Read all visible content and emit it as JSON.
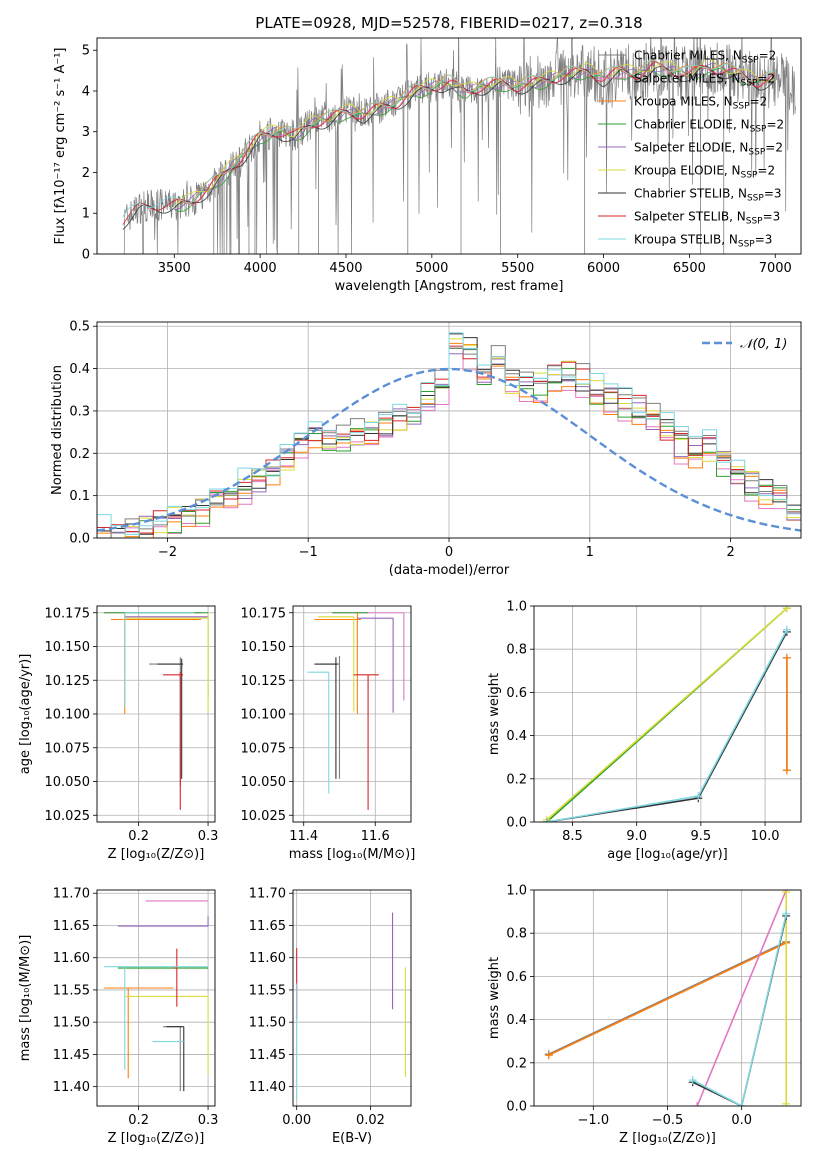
{
  "figure_title": "PLATE=0928, MJD=52578, FIBERID=0217, z=0.318",
  "models": [
    {
      "name": "Chabrier MILES, N",
      "nssp": "=2",
      "color": "#7f7f7f"
    },
    {
      "name": "Salpeter MILES, N",
      "nssp": "=2",
      "color": "#e377c2"
    },
    {
      "name": "Kroupa MILES, N",
      "nssp": "=2",
      "color": "#ff7f0e"
    },
    {
      "name": "Chabrier ELODIE, N",
      "nssp": "=2",
      "color": "#2ca02c"
    },
    {
      "name": "Salpeter ELODIE, N",
      "nssp": "=2",
      "color": "#9467bd"
    },
    {
      "name": "Kroupa ELODIE, N",
      "nssp": "=2",
      "color": "#dbdb3a"
    },
    {
      "name": "Chabrier STELIB, N",
      "nssp": "=3",
      "color": "#333333"
    },
    {
      "name": "Salpeter STELIB, N",
      "nssp": "=3",
      "color": "#d62728"
    },
    {
      "name": "Kroupa STELIB, N",
      "nssp": "=3",
      "color": "#7fd8e0"
    }
  ],
  "chart_data": [
    {
      "id": "spectrum",
      "type": "line",
      "title": "PLATE=0928, MJD=52578, FIBERID=0217, z=0.318",
      "xlabel": "wavelength [Angstrom, rest frame]",
      "ylabel": "Flux [fλ10⁻¹⁷ erg cm⁻² s⁻¹ A⁻¹]",
      "xlim": [
        3050,
        7150
      ],
      "ylim": [
        0,
        5.3
      ],
      "xticks": [
        3500,
        4000,
        4500,
        5000,
        5500,
        6000,
        6500,
        7000
      ],
      "yticks": [
        0,
        1,
        2,
        3,
        4,
        5
      ],
      "grid": false,
      "legend_position": "top-right",
      "data_range": [
        3200,
        7120
      ],
      "envelope": {
        "x": [
          3200,
          3300,
          3400,
          3500,
          3600,
          3700,
          3800,
          3900,
          4000,
          4100,
          4200,
          4300,
          4400,
          4500,
          4600,
          4700,
          4800,
          4900,
          5000,
          5100,
          5200,
          5300,
          5400,
          5500,
          5600,
          5700,
          5800,
          5900,
          6000,
          6100,
          6200,
          6300,
          6400,
          6500,
          6600,
          6700,
          6800,
          6900,
          7000,
          7100
        ],
        "y": [
          0.8,
          1.15,
          1.2,
          1.2,
          1.3,
          1.6,
          2.0,
          2.4,
          2.9,
          3.0,
          2.9,
          3.2,
          3.3,
          3.5,
          3.4,
          3.6,
          3.7,
          4.0,
          4.1,
          4.2,
          4.0,
          4.1,
          4.2,
          4.1,
          4.2,
          4.3,
          4.4,
          4.5,
          4.3,
          4.5,
          4.4,
          4.6,
          4.5,
          4.4,
          4.6,
          4.5,
          4.4,
          4.2,
          4.3,
          4.1
        ]
      }
    },
    {
      "id": "residuals",
      "type": "bar",
      "xlabel": "(data-model)/error",
      "ylabel": "Normed distribution",
      "xlim": [
        -2.5,
        2.5
      ],
      "ylim": [
        0,
        0.51
      ],
      "xticks": [
        -2,
        -1,
        0,
        1,
        2
      ],
      "yticks": [
        0.0,
        0.1,
        0.2,
        0.3,
        0.4,
        0.5
      ],
      "grid": true,
      "legend_position": "top-right",
      "normal_label": "𝒩(0, 1)",
      "bin_width": 0.1,
      "bins_start": -2.5,
      "base_values": [
        0.01,
        0.015,
        0.02,
        0.03,
        0.04,
        0.05,
        0.06,
        0.07,
        0.09,
        0.1,
        0.12,
        0.14,
        0.16,
        0.19,
        0.22,
        0.25,
        0.22,
        0.23,
        0.24,
        0.25,
        0.27,
        0.28,
        0.3,
        0.33,
        0.36,
        0.45,
        0.44,
        0.38,
        0.42,
        0.37,
        0.35,
        0.36,
        0.38,
        0.39,
        0.37,
        0.35,
        0.33,
        0.32,
        0.3,
        0.28,
        0.25,
        0.22,
        0.2,
        0.21,
        0.18,
        0.15,
        0.13,
        0.11,
        0.1,
        0.07
      ]
    },
    {
      "id": "age-vs-Z",
      "type": "scatter",
      "xlabel": "Z [log₁₀(Z/Z⊙)]",
      "ylabel": "age  [log₁₀(age/yr)]",
      "xlim": [
        0.14,
        0.31
      ],
      "ylim": [
        10.02,
        10.18
      ],
      "xticks": [
        0.2,
        0.3
      ],
      "yticks": [
        10.025,
        10.05,
        10.075,
        10.1,
        10.125,
        10.15,
        10.175
      ],
      "grid": true,
      "points": [
        {
          "x": 0.26,
          "y": 10.137,
          "xerr": [
            0.045,
            0.0
          ],
          "yerr": [
            0.09,
            0.005
          ],
          "model": 0
        },
        {
          "x": 0.22,
          "y": 10.175,
          "xerr": [
            0.07,
            0.07
          ],
          "yerr": [
            0.0,
            0.0
          ],
          "model": 1
        },
        {
          "x": 0.18,
          "y": 10.17,
          "xerr": [
            0.02,
            0.11
          ],
          "yerr": [
            0.07,
            0.005
          ],
          "model": 2
        },
        {
          "x": 0.23,
          "y": 10.175,
          "xerr": [
            0.08,
            0.07
          ],
          "yerr": [
            0.0,
            0.0
          ],
          "model": 3
        },
        {
          "x": 0.3,
          "y": 10.172,
          "xerr": [
            0.12,
            0.0
          ],
          "yerr": [
            0.06,
            0.0
          ],
          "model": 4
        },
        {
          "x": 0.3,
          "y": 10.171,
          "xerr": [
            0.12,
            0.0
          ],
          "yerr": [
            0.07,
            0.003
          ],
          "model": 5
        },
        {
          "x": 0.262,
          "y": 10.137,
          "xerr": [
            0.035,
            0.002
          ],
          "yerr": [
            0.085,
            0.004
          ],
          "model": 6
        },
        {
          "x": 0.26,
          "y": 10.129,
          "xerr": [
            0.025,
            0.004
          ],
          "yerr": [
            0.1,
            0.002
          ],
          "model": 7
        },
        {
          "x": 0.18,
          "y": 10.175,
          "xerr": [
            0.0,
            0.1
          ],
          "yerr": [
            0.07,
            0.0
          ],
          "model": 8
        }
      ]
    },
    {
      "id": "age-vs-mass",
      "type": "scatter",
      "xlabel": "mass [log₁₀(M/M⊙)]",
      "ylabel": "",
      "xlim": [
        11.37,
        11.7
      ],
      "ylim": [
        10.02,
        10.18
      ],
      "xticks": [
        11.4,
        11.6
      ],
      "yticks": [
        10.025,
        10.05,
        10.075,
        10.1,
        10.125,
        10.15,
        10.175
      ],
      "grid": true,
      "points": [
        {
          "x": 11.5,
          "y": 10.137,
          "xerr": [
            0.07,
            0.0
          ],
          "yerr": [
            0.085,
            0.006
          ],
          "model": 0
        },
        {
          "x": 11.68,
          "y": 10.175,
          "xerr": [
            0.2,
            0.0
          ],
          "yerr": [
            0.065,
            0.0
          ],
          "model": 1
        },
        {
          "x": 11.55,
          "y": 10.17,
          "xerr": [
            0.12,
            0.01
          ],
          "yerr": [
            0.07,
            0.005
          ],
          "model": 2
        },
        {
          "x": 11.58,
          "y": 10.175,
          "xerr": [
            0.1,
            0.0
          ],
          "yerr": [
            0.0,
            0.0
          ],
          "model": 3
        },
        {
          "x": 11.65,
          "y": 10.171,
          "xerr": [
            0.1,
            0.0
          ],
          "yerr": [
            0.07,
            0.0
          ],
          "model": 4
        },
        {
          "x": 11.54,
          "y": 10.172,
          "xerr": [
            0.1,
            0.0
          ],
          "yerr": [
            0.07,
            0.0
          ],
          "model": 5
        },
        {
          "x": 11.49,
          "y": 10.137,
          "xerr": [
            0.06,
            0.005
          ],
          "yerr": [
            0.085,
            0.005
          ],
          "model": 6
        },
        {
          "x": 11.58,
          "y": 10.129,
          "xerr": [
            0.04,
            0.03
          ],
          "yerr": [
            0.1,
            0.0
          ],
          "model": 7
        },
        {
          "x": 11.47,
          "y": 10.131,
          "xerr": [
            0.06,
            0.0
          ],
          "yerr": [
            0.09,
            0.0
          ],
          "model": 8
        }
      ]
    },
    {
      "id": "weight-vs-age",
      "type": "line",
      "xlabel": "age  [log₁₀(age/yr)]",
      "ylabel": "mass weight",
      "xlim": [
        8.2,
        10.28
      ],
      "ylim": [
        0,
        1
      ],
      "xticks": [
        8.5,
        9.0,
        9.5,
        10.0
      ],
      "yticks": [
        0.0,
        0.2,
        0.4,
        0.6,
        0.8,
        1.0
      ],
      "grid": true,
      "series": [
        {
          "model": 0,
          "x": [
            10.17,
            10.17
          ],
          "y": [
            0.24,
            0.76
          ]
        },
        {
          "model": 2,
          "x": [
            10.17,
            10.17
          ],
          "y": [
            0.24,
            0.76
          ]
        },
        {
          "model": 3,
          "x": [
            8.3,
            10.17
          ],
          "y": [
            0.0,
            0.99
          ]
        },
        {
          "model": 5,
          "x": [
            8.3,
            10.17
          ],
          "y": [
            0.01,
            0.99
          ]
        },
        {
          "model": 6,
          "x": [
            8.3,
            9.48,
            10.17
          ],
          "y": [
            0.0,
            0.11,
            0.88
          ]
        },
        {
          "model": 8,
          "x": [
            8.3,
            9.48,
            10.17
          ],
          "y": [
            0.0,
            0.12,
            0.89
          ]
        }
      ]
    },
    {
      "id": "mass-vs-Z",
      "type": "scatter",
      "xlabel": "Z [log₁₀(Z/Z⊙)]",
      "ylabel": "mass [log₁₀(M/M⊙)]",
      "xlim": [
        0.14,
        0.31
      ],
      "ylim": [
        11.37,
        11.705
      ],
      "xticks": [
        0.2,
        0.3
      ],
      "yticks": [
        11.4,
        11.45,
        11.5,
        11.55,
        11.6,
        11.65,
        11.7
      ],
      "grid": true,
      "points": [
        {
          "x": 0.26,
          "y": 11.493,
          "xerr": [
            0.025,
            0.002
          ],
          "yerr": [
            0.1,
            0.0
          ],
          "model": 0
        },
        {
          "x": 0.3,
          "y": 11.688,
          "xerr": [
            0.09,
            0.0
          ],
          "yerr": [
            0.0,
            0.0
          ],
          "model": 1
        },
        {
          "x": 0.185,
          "y": 11.553,
          "xerr": [
            0.035,
            0.065
          ],
          "yerr": [
            0.14,
            0.0
          ],
          "model": 2
        },
        {
          "x": 0.3,
          "y": 11.584,
          "xerr": [
            0.13,
            0.0
          ],
          "yerr": [
            0.0,
            0.0
          ],
          "model": 3
        },
        {
          "x": 0.3,
          "y": 11.649,
          "xerr": [
            0.13,
            0.0
          ],
          "yerr": [
            0.0,
            0.015
          ],
          "model": 4
        },
        {
          "x": 0.3,
          "y": 11.54,
          "xerr": [
            0.12,
            0.0
          ],
          "yerr": [
            0.12,
            0.0
          ],
          "model": 5
        },
        {
          "x": 0.265,
          "y": 11.493,
          "xerr": [
            0.025,
            0.0
          ],
          "yerr": [
            0.1,
            0.0
          ],
          "model": 6
        },
        {
          "x": 0.255,
          "y": 11.584,
          "xerr": [
            0.005,
            0.0
          ],
          "yerr": [
            0.06,
            0.03
          ],
          "model": 7
        },
        {
          "x": 0.24,
          "y": 11.47,
          "xerr": [
            0.02,
            0.025
          ],
          "yerr": [
            0.0,
            0.0
          ],
          "model": 8
        },
        {
          "x": 0.18,
          "y": 11.586,
          "xerr": [
            0.03,
            0.12
          ],
          "yerr": [
            0.16,
            0.0
          ],
          "model": 8
        }
      ]
    },
    {
      "id": "mass-vs-EBV",
      "type": "scatter",
      "xlabel": "E(B-V)",
      "ylabel": "",
      "xlim": [
        -0.001,
        0.031
      ],
      "ylim": [
        11.37,
        11.705
      ],
      "xticks": [
        0.0,
        0.02
      ],
      "yticks": [
        11.4,
        11.45,
        11.5,
        11.55,
        11.6,
        11.65,
        11.7
      ],
      "grid": true,
      "points": [
        {
          "x": 0.0,
          "y": 11.69,
          "yerr": [
            0.0,
            0.0
          ],
          "model": 1
        },
        {
          "x": 0.0,
          "y": 11.56,
          "yerr": [
            0.055,
            0.055
          ],
          "model": 7
        },
        {
          "x": 0.0,
          "y": 11.47,
          "yerr": [
            0.09,
            0.09
          ],
          "model": 8
        },
        {
          "x": 0.026,
          "y": 11.595,
          "yerr": [
            0.075,
            0.075
          ],
          "model": 4
        },
        {
          "x": 0.0295,
          "y": 11.5,
          "yerr": [
            0.085,
            0.085
          ],
          "model": 5
        }
      ]
    },
    {
      "id": "weight-vs-Z",
      "type": "line",
      "xlabel": "Z [log₁₀(Z/Z⊙)]",
      "ylabel": "mass weight",
      "xlim": [
        -1.4,
        0.4
      ],
      "ylim": [
        0,
        1
      ],
      "xticks": [
        -1.0,
        -0.5,
        0.0
      ],
      "yticks": [
        0.0,
        0.2,
        0.4,
        0.6,
        0.8,
        1.0
      ],
      "grid": true,
      "series": [
        {
          "model": 0,
          "x": [
            -1.3,
            0.3
          ],
          "y": [
            0.24,
            0.76
          ]
        },
        {
          "model": 2,
          "x": [
            -1.3,
            0.3
          ],
          "y": [
            0.235,
            0.755
          ]
        },
        {
          "model": 1,
          "x": [
            -0.3,
            0.3
          ],
          "y": [
            0.0,
            1.0
          ]
        },
        {
          "model": 5,
          "x": [
            0.3,
            0.3
          ],
          "y": [
            0.01,
            0.99
          ]
        },
        {
          "model": 6,
          "x": [
            -0.33,
            0.0,
            0.3
          ],
          "y": [
            0.11,
            0.0,
            0.88
          ]
        },
        {
          "model": 8,
          "x": [
            -0.33,
            0.0,
            0.3
          ],
          "y": [
            0.12,
            0.0,
            0.89
          ]
        }
      ]
    }
  ]
}
